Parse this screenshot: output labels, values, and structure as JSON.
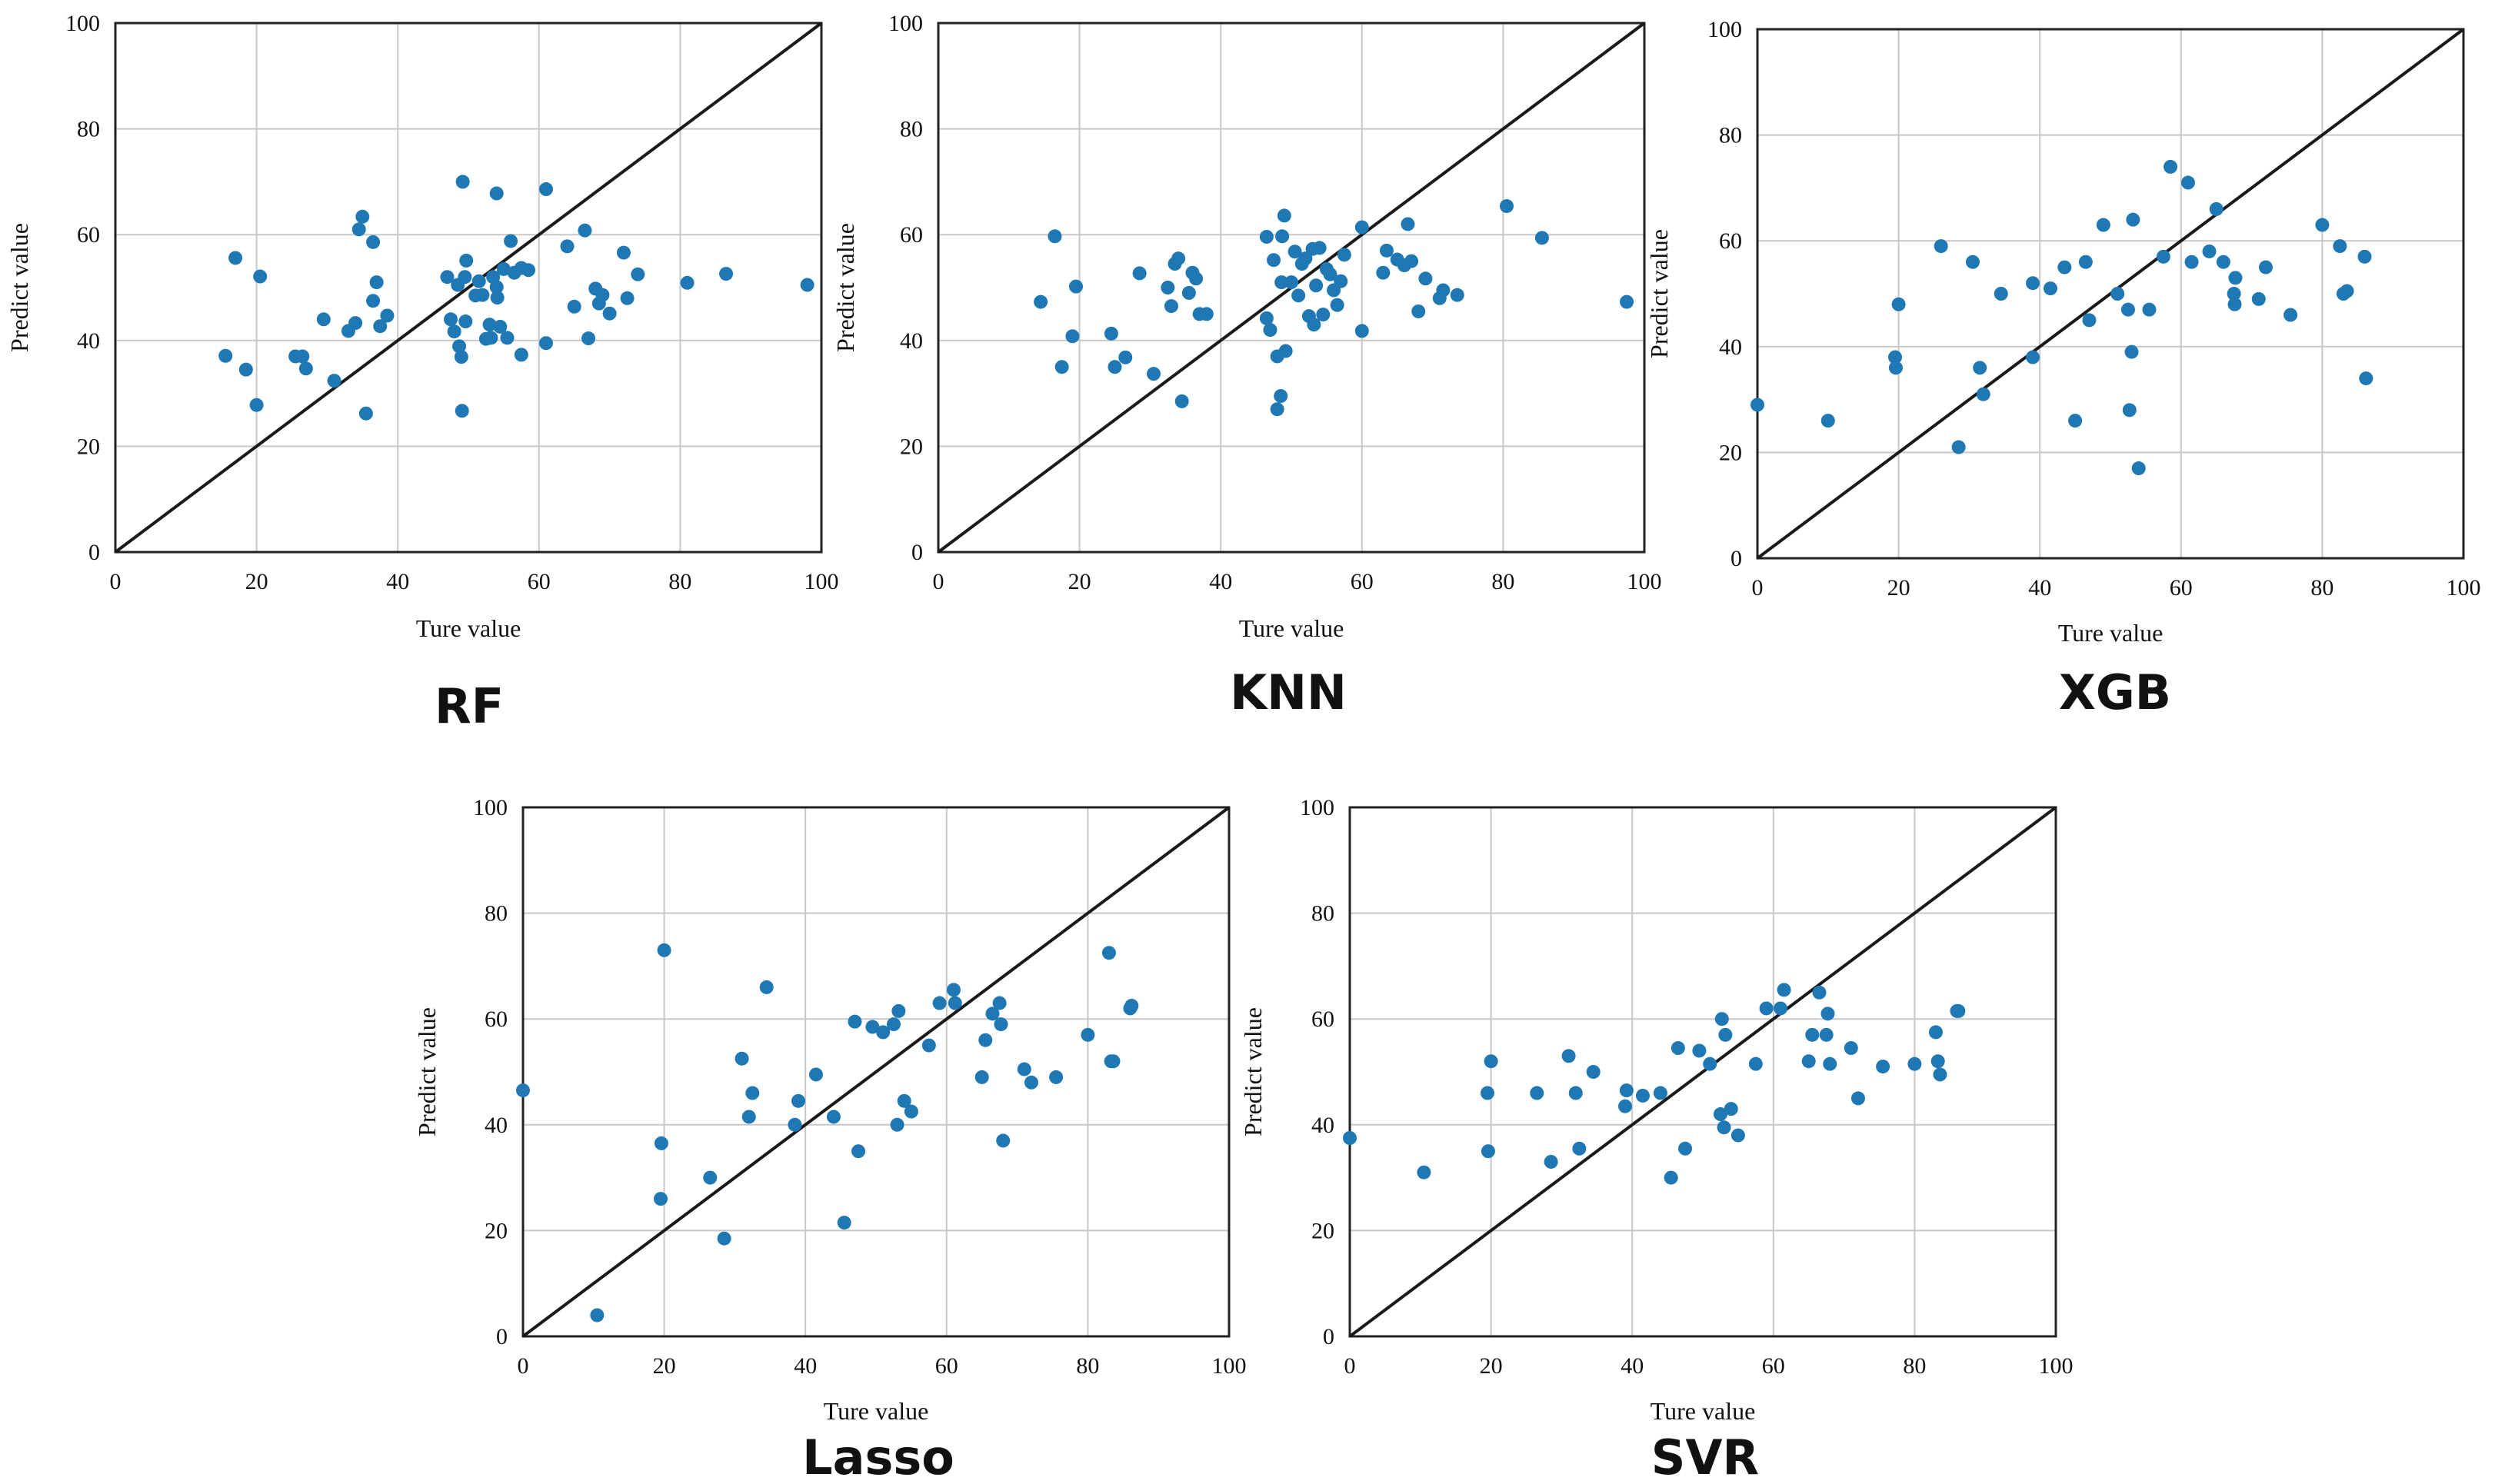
{
  "colors": {
    "point": "#1f78b4",
    "grid": "#c8c8c8",
    "line": "#1a1a1a"
  },
  "chart_data": [
    {
      "type": "scatter",
      "title": "RF",
      "xlabel": "Ture value",
      "ylabel": "Predict value",
      "xlim": [
        0,
        100
      ],
      "ylim": [
        0,
        100
      ],
      "xticks": [
        "0",
        "20",
        "40",
        "60",
        "80",
        "100"
      ],
      "yticks": [
        "0",
        "20",
        "40",
        "60",
        "80",
        "100"
      ],
      "reference_line": "y = x",
      "points": [
        [
          15.6,
          37.1
        ],
        [
          17.0,
          55.6
        ],
        [
          18.5,
          34.5
        ],
        [
          20.0,
          27.8
        ],
        [
          20.5,
          52.1
        ],
        [
          25.5,
          37.0
        ],
        [
          26.5,
          37.0
        ],
        [
          27.0,
          34.7
        ],
        [
          29.5,
          44.0
        ],
        [
          31.0,
          32.4
        ],
        [
          33.0,
          41.8
        ],
        [
          34.0,
          43.3
        ],
        [
          34.5,
          61.0
        ],
        [
          35.0,
          63.4
        ],
        [
          35.5,
          26.2
        ],
        [
          36.5,
          47.5
        ],
        [
          36.5,
          58.6
        ],
        [
          37.0,
          51.0
        ],
        [
          37.5,
          42.7
        ],
        [
          38.5,
          44.7
        ],
        [
          47.0,
          52.0
        ],
        [
          47.5,
          44.0
        ],
        [
          48.0,
          41.7
        ],
        [
          48.5,
          50.5
        ],
        [
          48.7,
          38.9
        ],
        [
          49.0,
          36.9
        ],
        [
          49.1,
          26.7
        ],
        [
          49.2,
          70.0
        ],
        [
          49.5,
          52.0
        ],
        [
          49.6,
          43.6
        ],
        [
          49.7,
          55.1
        ],
        [
          51.0,
          48.5
        ],
        [
          51.5,
          51.2
        ],
        [
          52.0,
          48.6
        ],
        [
          52.5,
          40.3
        ],
        [
          53.0,
          43.0
        ],
        [
          53.2,
          40.5
        ],
        [
          53.5,
          52.0
        ],
        [
          54.0,
          67.8
        ],
        [
          54.0,
          50.1
        ],
        [
          54.1,
          48.1
        ],
        [
          54.5,
          42.6
        ],
        [
          55.0,
          53.5
        ],
        [
          55.5,
          40.5
        ],
        [
          56.0,
          58.8
        ],
        [
          56.5,
          52.8
        ],
        [
          57.5,
          37.3
        ],
        [
          57.5,
          53.7
        ],
        [
          58.5,
          53.3
        ],
        [
          61.0,
          68.6
        ],
        [
          61.0,
          39.5
        ],
        [
          64.0,
          57.8
        ],
        [
          65.0,
          46.4
        ],
        [
          66.5,
          60.8
        ],
        [
          67.0,
          40.4
        ],
        [
          68.0,
          49.8
        ],
        [
          68.5,
          47.0
        ],
        [
          69.0,
          48.6
        ],
        [
          70.0,
          45.1
        ],
        [
          72.0,
          56.6
        ],
        [
          72.5,
          48.0
        ],
        [
          74.0,
          52.5
        ],
        [
          81.0,
          50.9
        ],
        [
          86.5,
          52.6
        ],
        [
          98.0,
          50.5
        ]
      ]
    },
    {
      "type": "scatter",
      "title": "KNN",
      "xlabel": "Ture value",
      "ylabel": "Predict value",
      "xlim": [
        0,
        100
      ],
      "ylim": [
        0,
        100
      ],
      "xticks": [
        "0",
        "20",
        "40",
        "60",
        "80",
        "100"
      ],
      "yticks": [
        "0",
        "20",
        "40",
        "60",
        "80",
        "100"
      ],
      "reference_line": "y = x",
      "points": [
        [
          14.5,
          47.3
        ],
        [
          16.5,
          59.7
        ],
        [
          17.5,
          35.0
        ],
        [
          19.0,
          40.8
        ],
        [
          19.5,
          50.2
        ],
        [
          24.5,
          41.3
        ],
        [
          25.0,
          35.0
        ],
        [
          26.5,
          36.8
        ],
        [
          28.5,
          52.7
        ],
        [
          30.5,
          33.7
        ],
        [
          32.5,
          50.0
        ],
        [
          33.0,
          46.5
        ],
        [
          33.5,
          54.5
        ],
        [
          34.0,
          55.5
        ],
        [
          34.5,
          28.5
        ],
        [
          35.5,
          49.0
        ],
        [
          36.0,
          52.8
        ],
        [
          36.5,
          51.7
        ],
        [
          37.0,
          45.0
        ],
        [
          38.0,
          45.0
        ],
        [
          46.5,
          44.2
        ],
        [
          46.5,
          59.6
        ],
        [
          47.0,
          42.0
        ],
        [
          47.5,
          55.2
        ],
        [
          48.0,
          27.0
        ],
        [
          48.0,
          37.0
        ],
        [
          48.5,
          29.5
        ],
        [
          48.6,
          51.0
        ],
        [
          48.7,
          59.7
        ],
        [
          49.0,
          63.6
        ],
        [
          49.2,
          38.0
        ],
        [
          50.0,
          51.0
        ],
        [
          50.5,
          56.8
        ],
        [
          51.0,
          48.5
        ],
        [
          51.5,
          54.5
        ],
        [
          52.0,
          55.5
        ],
        [
          52.5,
          44.6
        ],
        [
          53.0,
          57.3
        ],
        [
          53.2,
          43.0
        ],
        [
          53.5,
          50.4
        ],
        [
          54.0,
          57.5
        ],
        [
          54.5,
          44.9
        ],
        [
          55.0,
          53.5
        ],
        [
          55.5,
          52.5
        ],
        [
          56.0,
          49.5
        ],
        [
          56.5,
          46.7
        ],
        [
          57.0,
          51.2
        ],
        [
          57.5,
          56.2
        ],
        [
          60.0,
          61.4
        ],
        [
          60.0,
          41.8
        ],
        [
          63.0,
          52.8
        ],
        [
          63.5,
          57.0
        ],
        [
          65.0,
          55.3
        ],
        [
          66.0,
          54.2
        ],
        [
          66.5,
          62.0
        ],
        [
          67.0,
          55.0
        ],
        [
          68.0,
          45.5
        ],
        [
          69.0,
          51.7
        ],
        [
          71.0,
          48.0
        ],
        [
          71.5,
          49.5
        ],
        [
          73.5,
          48.6
        ],
        [
          80.5,
          65.4
        ],
        [
          85.5,
          59.4
        ],
        [
          97.5,
          47.3
        ]
      ]
    },
    {
      "type": "scatter",
      "title": "XGB",
      "xlabel": "Ture value",
      "ylabel": "Predict value",
      "xlim": [
        0,
        100
      ],
      "ylim": [
        0,
        100
      ],
      "xticks": [
        "0",
        "20",
        "40",
        "60",
        "80",
        "100"
      ],
      "yticks": [
        "0",
        "20",
        "40",
        "60",
        "80",
        "100"
      ],
      "reference_line": "y = x",
      "points": [
        [
          0.0,
          29.0
        ],
        [
          10.0,
          26.0
        ],
        [
          19.5,
          38.0
        ],
        [
          19.6,
          36.0
        ],
        [
          20.0,
          48.0
        ],
        [
          26.0,
          59.0
        ],
        [
          28.5,
          21.0
        ],
        [
          30.5,
          56.0
        ],
        [
          31.5,
          36.0
        ],
        [
          32.0,
          31.0
        ],
        [
          34.5,
          50.0
        ],
        [
          39.0,
          52.0
        ],
        [
          39.0,
          38.0
        ],
        [
          41.5,
          51.0
        ],
        [
          43.5,
          55.0
        ],
        [
          45.0,
          26.0
        ],
        [
          46.5,
          56.0
        ],
        [
          47.0,
          45.0
        ],
        [
          49.0,
          63.0
        ],
        [
          51.0,
          50.0
        ],
        [
          52.5,
          47.0
        ],
        [
          52.7,
          28.0
        ],
        [
          53.0,
          39.0
        ],
        [
          53.2,
          64.0
        ],
        [
          54.0,
          17.0
        ],
        [
          55.5,
          47.0
        ],
        [
          57.5,
          57.0
        ],
        [
          58.5,
          74.0
        ],
        [
          61.0,
          71.0
        ],
        [
          61.5,
          56.0
        ],
        [
          64.0,
          58.0
        ],
        [
          65.0,
          66.0
        ],
        [
          66.0,
          56.0
        ],
        [
          67.5,
          50.0
        ],
        [
          67.6,
          48.0
        ],
        [
          67.7,
          53.0
        ],
        [
          71.0,
          49.0
        ],
        [
          72.0,
          55.0
        ],
        [
          75.5,
          46.0
        ],
        [
          80.0,
          63.0
        ],
        [
          82.5,
          59.0
        ],
        [
          83.0,
          50.0
        ],
        [
          83.5,
          50.5
        ],
        [
          86.0,
          57.0
        ],
        [
          86.2,
          34.0
        ]
      ]
    },
    {
      "type": "scatter",
      "title": "Lasso",
      "xlabel": "Ture value",
      "ylabel": "Predict value",
      "xlim": [
        0,
        100
      ],
      "ylim": [
        0,
        100
      ],
      "xticks": [
        "0",
        "20",
        "40",
        "60",
        "80",
        "100"
      ],
      "yticks": [
        "0",
        "20",
        "40",
        "60",
        "80",
        "100"
      ],
      "reference_line": "y = x",
      "points": [
        [
          0.0,
          46.5
        ],
        [
          10.5,
          4.0
        ],
        [
          19.5,
          26.0
        ],
        [
          19.6,
          36.5
        ],
        [
          20.0,
          73.0
        ],
        [
          26.5,
          30.0
        ],
        [
          28.5,
          18.5
        ],
        [
          31.0,
          52.5
        ],
        [
          32.0,
          41.5
        ],
        [
          32.5,
          46.0
        ],
        [
          34.5,
          66.0
        ],
        [
          38.5,
          40.0
        ],
        [
          39.0,
          44.5
        ],
        [
          41.5,
          49.5
        ],
        [
          44.0,
          41.5
        ],
        [
          45.5,
          21.5
        ],
        [
          47.0,
          59.5
        ],
        [
          47.5,
          35.0
        ],
        [
          49.5,
          58.5
        ],
        [
          51.0,
          57.5
        ],
        [
          52.5,
          59.0
        ],
        [
          53.0,
          40.0
        ],
        [
          53.2,
          61.5
        ],
        [
          54.0,
          44.5
        ],
        [
          55.0,
          42.5
        ],
        [
          57.5,
          55.0
        ],
        [
          59.0,
          63.0
        ],
        [
          61.0,
          65.5
        ],
        [
          61.2,
          63.0
        ],
        [
          65.0,
          49.0
        ],
        [
          65.5,
          56.0
        ],
        [
          66.5,
          61.0
        ],
        [
          67.5,
          63.0
        ],
        [
          67.7,
          59.0
        ],
        [
          68.0,
          37.0
        ],
        [
          71.0,
          50.5
        ],
        [
          72.0,
          48.0
        ],
        [
          75.5,
          49.0
        ],
        [
          80.0,
          57.0
        ],
        [
          83.0,
          72.5
        ],
        [
          83.3,
          52.0
        ],
        [
          83.6,
          52.0
        ],
        [
          86.0,
          62.0
        ],
        [
          86.2,
          62.5
        ]
      ]
    },
    {
      "type": "scatter",
      "title": "SVR",
      "xlabel": "Ture value",
      "ylabel": "Predict value",
      "xlim": [
        0,
        100
      ],
      "ylim": [
        0,
        100
      ],
      "xticks": [
        "0",
        "20",
        "40",
        "60",
        "80",
        "100"
      ],
      "yticks": [
        "0",
        "20",
        "40",
        "60",
        "80",
        "100"
      ],
      "reference_line": "y = x",
      "points": [
        [
          0.0,
          37.5
        ],
        [
          10.5,
          31.0
        ],
        [
          19.5,
          46.0
        ],
        [
          19.6,
          35.0
        ],
        [
          20.0,
          52.0
        ],
        [
          26.5,
          46.0
        ],
        [
          28.5,
          33.0
        ],
        [
          31.0,
          53.0
        ],
        [
          32.0,
          46.0
        ],
        [
          32.5,
          35.5
        ],
        [
          34.5,
          50.0
        ],
        [
          39.0,
          43.5
        ],
        [
          39.2,
          46.5
        ],
        [
          41.5,
          45.5
        ],
        [
          44.0,
          46.0
        ],
        [
          45.5,
          30.0
        ],
        [
          46.5,
          54.5
        ],
        [
          47.5,
          35.5
        ],
        [
          49.5,
          54.0
        ],
        [
          51.0,
          51.5
        ],
        [
          52.5,
          42.0
        ],
        [
          52.7,
          60.0
        ],
        [
          53.0,
          39.5
        ],
        [
          53.2,
          57.0
        ],
        [
          54.0,
          43.0
        ],
        [
          55.0,
          38.0
        ],
        [
          57.5,
          51.5
        ],
        [
          59.0,
          62.0
        ],
        [
          61.0,
          62.0
        ],
        [
          61.5,
          65.5
        ],
        [
          65.0,
          52.0
        ],
        [
          65.5,
          57.0
        ],
        [
          66.5,
          65.0
        ],
        [
          67.5,
          57.0
        ],
        [
          67.7,
          61.0
        ],
        [
          68.0,
          51.5
        ],
        [
          71.0,
          54.5
        ],
        [
          72.0,
          45.0
        ],
        [
          75.5,
          51.0
        ],
        [
          80.0,
          51.5
        ],
        [
          83.0,
          57.5
        ],
        [
          83.3,
          52.0
        ],
        [
          83.6,
          49.5
        ],
        [
          86.0,
          61.5
        ],
        [
          86.2,
          61.5
        ]
      ]
    }
  ]
}
